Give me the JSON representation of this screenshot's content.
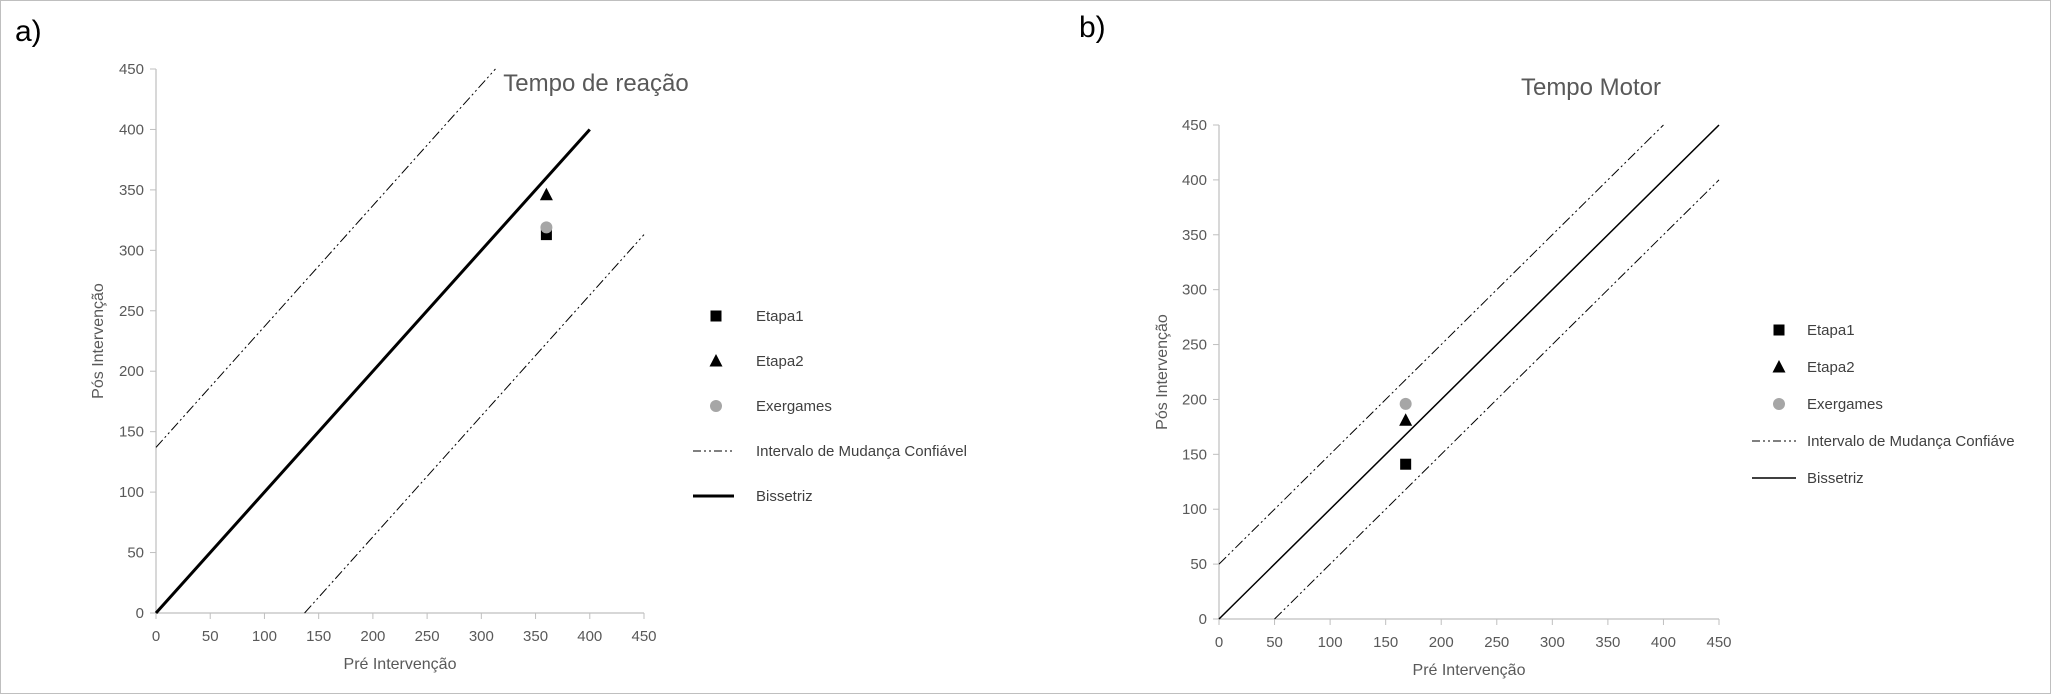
{
  "panel_labels": [
    "a)",
    "b)"
  ],
  "chart_data": [
    {
      "type": "scatter",
      "title": "Tempo de reação",
      "xlabel": "Pré Intervenção",
      "ylabel": "Pós Intervenção",
      "xlim": [
        0,
        450
      ],
      "ylim": [
        0,
        450
      ],
      "xticks": [
        0,
        50,
        100,
        150,
        200,
        250,
        300,
        350,
        400,
        450
      ],
      "yticks": [
        0,
        50,
        100,
        150,
        200,
        250,
        300,
        350,
        400,
        450
      ],
      "grid": false,
      "legend_position": "right",
      "series": [
        {
          "name": "Etapa1",
          "kind": "marker",
          "marker": "square",
          "color": "#000000",
          "points": [
            [
              360,
              313
            ]
          ]
        },
        {
          "name": "Etapa2",
          "kind": "marker",
          "marker": "triangle",
          "color": "#000000",
          "points": [
            [
              360,
              346
            ]
          ]
        },
        {
          "name": "Exergames",
          "kind": "marker",
          "marker": "circle",
          "color": "#a6a6a6",
          "points": [
            [
              360,
              319
            ]
          ]
        },
        {
          "name": "Intervalo de Mudança Confiável",
          "kind": "line",
          "style": "dashdotdot",
          "color": "#000000",
          "segments": [
            [
              [
                0,
                137
              ],
              [
                313,
                450
              ]
            ],
            [
              [
                137,
                0
              ],
              [
                450,
                313
              ]
            ]
          ]
        },
        {
          "name": "Bissetriz",
          "kind": "line",
          "style": "solid-thick",
          "color": "#000000",
          "segments": [
            [
              [
                0,
                0
              ],
              [
                400,
                400
              ]
            ]
          ]
        }
      ]
    },
    {
      "type": "scatter",
      "title": "Tempo Motor",
      "xlabel": "Pré Intervenção",
      "ylabel": "Pós Intervenção",
      "xlim": [
        0,
        450
      ],
      "ylim": [
        0,
        450
      ],
      "xticks": [
        0,
        50,
        100,
        150,
        200,
        250,
        300,
        350,
        400,
        450
      ],
      "yticks": [
        0,
        50,
        100,
        150,
        200,
        250,
        300,
        350,
        400,
        450
      ],
      "grid": false,
      "legend_position": "right",
      "series": [
        {
          "name": "Etapa1",
          "kind": "marker",
          "marker": "square",
          "color": "#000000",
          "points": [
            [
              168,
              141
            ]
          ]
        },
        {
          "name": "Etapa2",
          "kind": "marker",
          "marker": "triangle",
          "color": "#000000",
          "points": [
            [
              168,
              181
            ]
          ]
        },
        {
          "name": "Exergames",
          "kind": "marker",
          "marker": "circle",
          "color": "#a6a6a6",
          "points": [
            [
              168,
              196
            ]
          ]
        },
        {
          "name": "Intervalo de Mudança Confiáve",
          "kind": "line",
          "style": "dashdotdot",
          "color": "#000000",
          "segments": [
            [
              [
                0,
                50
              ],
              [
                400,
                450
              ]
            ],
            [
              [
                50,
                0
              ],
              [
                450,
                400
              ]
            ]
          ]
        },
        {
          "name": "Bissetriz",
          "kind": "line",
          "style": "solid",
          "color": "#000000",
          "segments": [
            [
              [
                0,
                0
              ],
              [
                450,
                450
              ]
            ]
          ]
        }
      ]
    }
  ]
}
